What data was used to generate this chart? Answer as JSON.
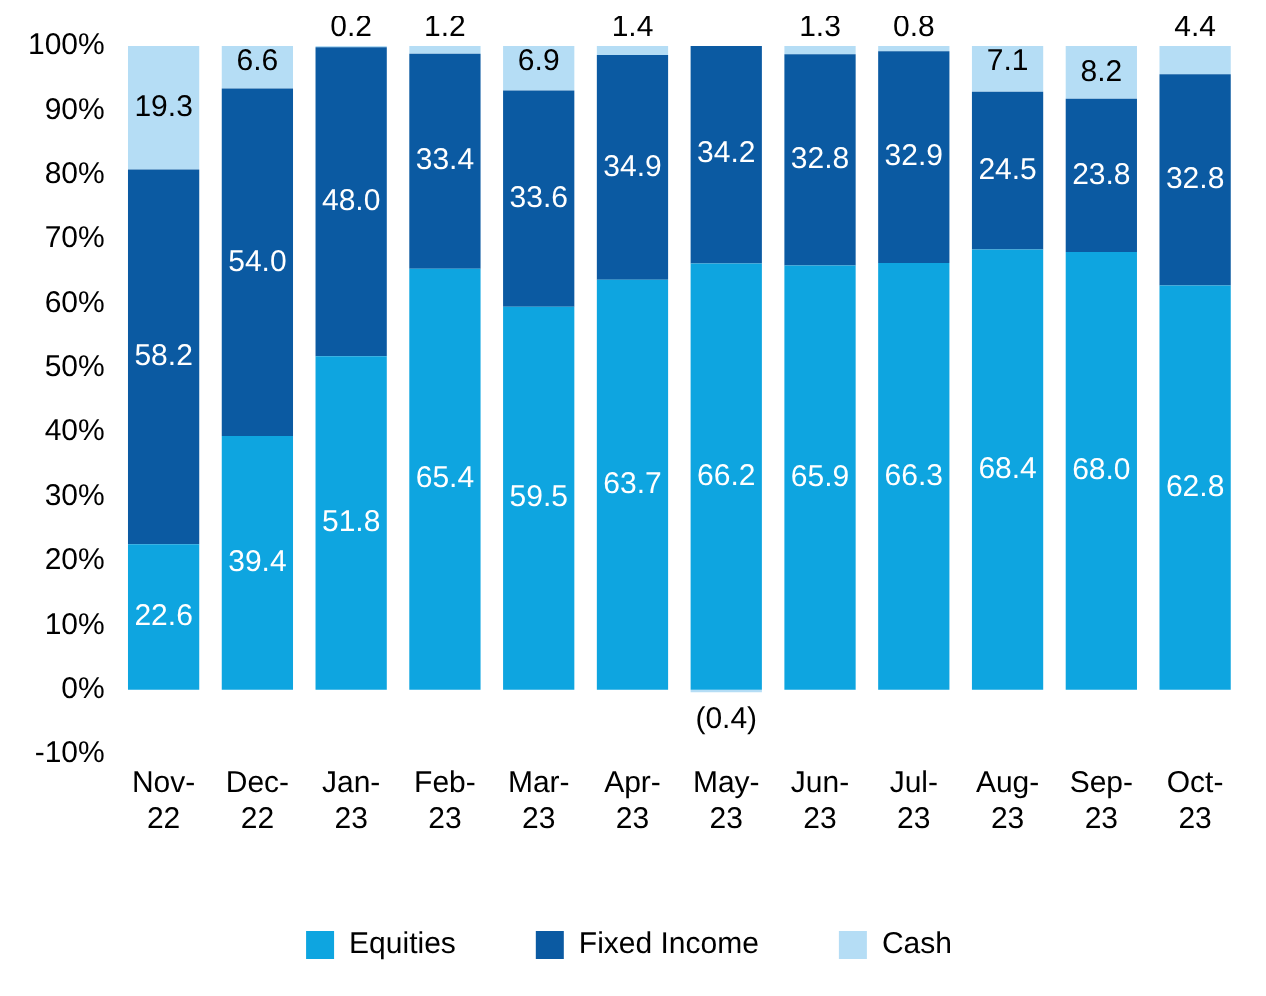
{
  "chart_data": {
    "type": "bar",
    "stacked": true,
    "categories": [
      "Nov-22",
      "Dec-22",
      "Jan-23",
      "Feb-23",
      "Mar-23",
      "Apr-23",
      "May-23",
      "Jun-23",
      "Jul-23",
      "Aug-23",
      "Sep-23",
      "Oct-23"
    ],
    "series": [
      {
        "name": "Equities",
        "color": "#0ea5e0",
        "values": [
          22.6,
          39.4,
          51.8,
          65.4,
          59.5,
          63.7,
          66.2,
          65.9,
          66.3,
          68.4,
          68.0,
          62.8
        ],
        "value_labels": [
          "22.6",
          "39.4",
          "51.8",
          "65.4",
          "59.5",
          "63.7",
          "66.2",
          "65.9",
          "66.3",
          "68.4",
          "68.0",
          "62.8"
        ]
      },
      {
        "name": "Fixed Income",
        "color": "#0b5aa2",
        "values": [
          58.2,
          54.0,
          48.0,
          33.4,
          33.6,
          34.9,
          34.2,
          32.8,
          32.9,
          24.5,
          23.8,
          32.8
        ],
        "value_labels": [
          "58.2",
          "54.0",
          "48.0",
          "33.4",
          "33.6",
          "34.9",
          "34.2",
          "32.8",
          "32.9",
          "24.5",
          "23.8",
          "32.8"
        ]
      },
      {
        "name": "Cash",
        "color": "#b5ddf5",
        "values": [
          19.3,
          6.6,
          0.2,
          1.2,
          6.9,
          1.4,
          -0.4,
          1.3,
          0.8,
          7.1,
          8.2,
          4.4
        ],
        "value_labels": [
          "19.3",
          "6.6",
          "0.2",
          "1.2",
          "6.9",
          "1.4",
          "(0.4)",
          "1.3",
          "0.8",
          "7.1",
          "8.2",
          "4.4"
        ]
      }
    ],
    "ylim": [
      -10,
      100
    ],
    "yticks": [
      {
        "value": -10,
        "label": "-10%"
      },
      {
        "value": 0,
        "label": "0%"
      },
      {
        "value": 10,
        "label": "10%"
      },
      {
        "value": 20,
        "label": "20%"
      },
      {
        "value": 30,
        "label": "30%"
      },
      {
        "value": 40,
        "label": "40%"
      },
      {
        "value": 50,
        "label": "50%"
      },
      {
        "value": 60,
        "label": "60%"
      },
      {
        "value": 70,
        "label": "70%"
      },
      {
        "value": 80,
        "label": "80%"
      },
      {
        "value": 90,
        "label": "90%"
      },
      {
        "value": 100,
        "label": "100%"
      }
    ],
    "grid": false,
    "legend": "bottom"
  }
}
